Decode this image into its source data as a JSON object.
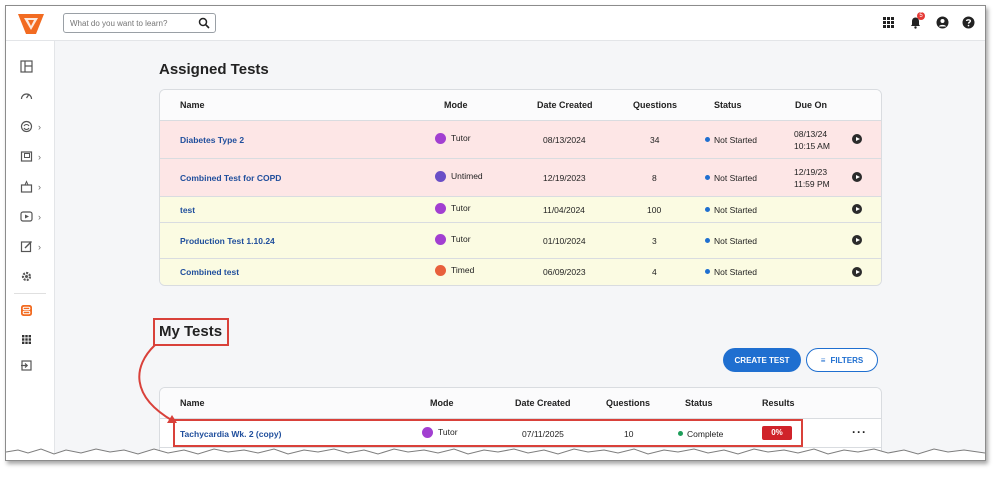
{
  "topbar": {
    "search_placeholder": "What do you want to learn?",
    "notification_count": "5"
  },
  "assigned": {
    "title": "Assigned Tests",
    "columns": [
      "Name",
      "Mode",
      "Date Created",
      "Questions",
      "Status",
      "Due On"
    ],
    "rows": [
      {
        "name": "Diabetes Type 2",
        "mode": "Tutor",
        "date": "08/13/2024",
        "questions": "34",
        "status": "Not Started",
        "due_date": "08/13/24",
        "due_time": "10:15 AM",
        "bg": "pink"
      },
      {
        "name": "Combined Test for COPD",
        "mode": "Untimed",
        "date": "12/19/2023",
        "questions": "8",
        "status": "Not Started",
        "due_date": "12/19/23",
        "due_time": "11:59 PM",
        "bg": "pink"
      },
      {
        "name": "test",
        "mode": "Tutor",
        "date": "11/04/2024",
        "questions": "100",
        "status": "Not Started",
        "due_date": "",
        "due_time": "",
        "bg": "yellow"
      },
      {
        "name": "Production Test 1.10.24",
        "mode": "Tutor",
        "date": "01/10/2024",
        "questions": "3",
        "status": "Not Started",
        "due_date": "",
        "due_time": "",
        "bg": "yellow"
      },
      {
        "name": "Combined test",
        "mode": "Timed",
        "date": "06/09/2023",
        "questions": "4",
        "status": "Not Started",
        "due_date": "",
        "due_time": "",
        "bg": "yellow"
      }
    ]
  },
  "mytests": {
    "title": "My Tests",
    "create_label": "CREATE TEST",
    "filters_label": "FILTERS",
    "columns": [
      "Name",
      "Mode",
      "Date Created",
      "Questions",
      "Status",
      "Results"
    ],
    "rows": [
      {
        "name": "Tachycardia Wk. 2 (copy)",
        "mode": "Tutor",
        "date": "07/11/2025",
        "questions": "10",
        "status": "Complete",
        "result": "0%"
      }
    ]
  },
  "colors": {
    "accent": "#1f6fd0",
    "tutor": "#a23fd1",
    "untimed": "#6a4fc7",
    "timed": "#e8603c",
    "not_started": "#1f6fd0",
    "complete": "#1e9e5a",
    "highlight": "#d9413a",
    "brand": "#f26b21"
  }
}
